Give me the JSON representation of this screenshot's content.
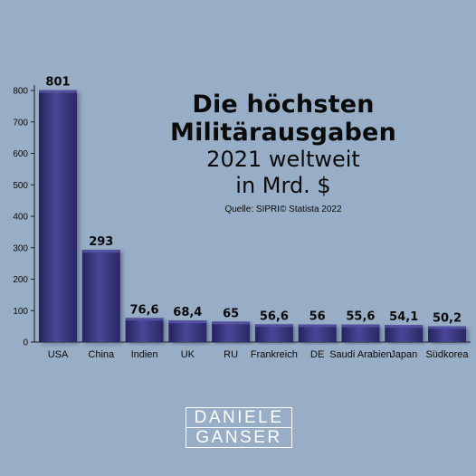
{
  "chart_data": {
    "type": "bar",
    "title": "Die höchsten Militärausgaben",
    "subtitle": "2021 weltweit in Mrd. $",
    "title_line1": "Die höchsten",
    "title_line2": "Militärausgaben",
    "subtitle_line1": "2021 weltweit",
    "subtitle_line2": "in Mrd. $",
    "source": "Quelle: SIPRI© Statista 2022",
    "categories": [
      "USA",
      "China",
      "Indien",
      "UK",
      "RU",
      "Frankreich",
      "DE",
      "Saudi Arabien",
      "Japan",
      "Südkorea"
    ],
    "values": [
      801,
      293,
      76.6,
      68.4,
      65,
      56.6,
      56,
      55.6,
      54.1,
      50.2
    ],
    "value_labels": [
      "801",
      "293",
      "76,6",
      "68,4",
      "65",
      "56,6",
      "56",
      "55,6",
      "54,1",
      "50,2"
    ],
    "ylim": [
      0,
      800
    ],
    "yticks": [
      0,
      100,
      200,
      300,
      400,
      500,
      600,
      700,
      800
    ],
    "xlabel": "",
    "ylabel": "",
    "grid": false,
    "colors": {
      "bar": "#3b3880",
      "bar_highlight": "#5955a6",
      "bar_shadow": "#1f1d52",
      "background": "#98aec6",
      "text": "#0a0a0a"
    }
  },
  "logo": {
    "line1": "DANIELE",
    "line2": "GANSER"
  }
}
